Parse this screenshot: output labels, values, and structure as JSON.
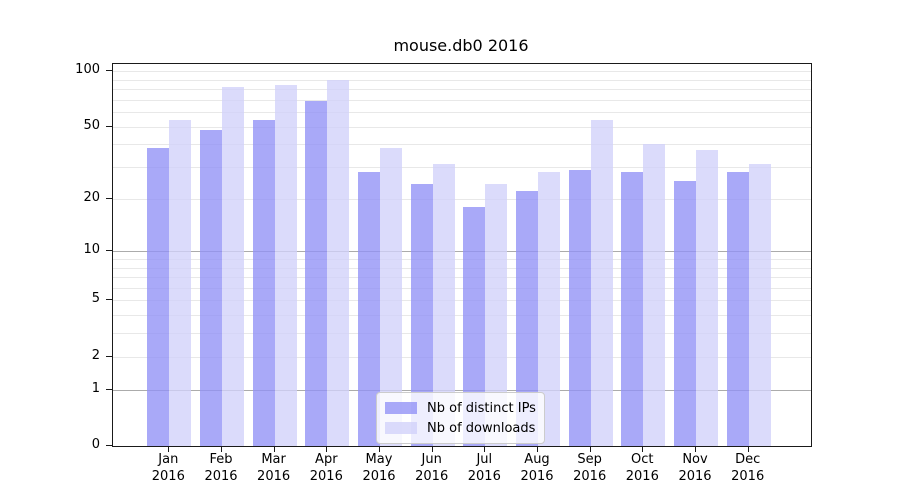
{
  "title": "mouse.db0 2016",
  "chart_data": {
    "type": "bar",
    "yscale": "log10(value+1)",
    "ylim": [
      0,
      100
    ],
    "grid": true,
    "legend_position": "bottom-center",
    "categories": [
      "Jan",
      "Feb",
      "Mar",
      "Apr",
      "May",
      "Jun",
      "Jul",
      "Aug",
      "Sep",
      "Oct",
      "Nov",
      "Dec"
    ],
    "year_label": "2016",
    "yticks": [
      0,
      1,
      2,
      5,
      10,
      20,
      50,
      100
    ],
    "gridlines_light": [
      2,
      3,
      4,
      5,
      6,
      7,
      8,
      9,
      20,
      30,
      40,
      50,
      60,
      70,
      80,
      90,
      100
    ],
    "gridlines_dark": [
      1,
      10
    ],
    "series": [
      {
        "name": "Nb of distinct IPs",
        "slug": "distinct-ips",
        "color": "#a9a9f7",
        "color_rgba": "rgba(145,145,246,0.78)",
        "values": [
          38,
          48,
          54,
          69,
          28,
          24,
          18,
          22,
          29,
          28,
          25,
          28
        ]
      },
      {
        "name": "Nb of downloads",
        "slug": "downloads",
        "color": "#dbdbf9",
        "color_rgba": "rgba(209,209,250,0.78)",
        "values": [
          54,
          82,
          84,
          90,
          38,
          31,
          24,
          28,
          54,
          40,
          37,
          31
        ]
      }
    ]
  },
  "colors": {
    "gridline_light": "#e8e8e8",
    "gridline_dark": "#ababab",
    "spine": "#1a1a1a",
    "legend_border": "#cccccc"
  }
}
